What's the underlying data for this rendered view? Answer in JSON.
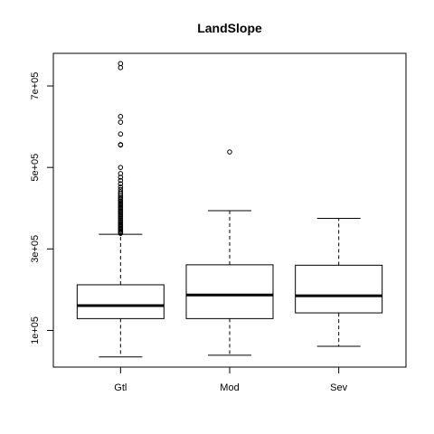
{
  "chart_data": {
    "type": "boxplot",
    "title": "LandSlope",
    "xlabel": "",
    "ylabel": "",
    "categories": [
      "Gtl",
      "Mod",
      "Sev"
    ],
    "y_ticks": [
      100000,
      300000,
      500000,
      700000
    ],
    "y_tick_labels": [
      "1e+05",
      "3e+05",
      "5e+05",
      "7e+05"
    ],
    "ylim": [
      10000,
      780000
    ],
    "grid": false,
    "boxes": [
      {
        "name": "Gtl",
        "whisker_low": 35000,
        "q1": 129000,
        "median": 161000,
        "q3": 212000,
        "whisker_high": 336000,
        "outliers": [
          338000,
          340000,
          342000,
          345000,
          348000,
          350000,
          353000,
          355000,
          358000,
          360000,
          363000,
          366000,
          369000,
          372000,
          375000,
          378000,
          381000,
          384000,
          387000,
          390000,
          393000,
          396000,
          399000,
          402000,
          405000,
          408000,
          411000,
          414000,
          417000,
          420000,
          423000,
          426000,
          430000,
          435000,
          440000,
          446000,
          452000,
          460000,
          468000,
          476000,
          485000,
          500000,
          555000,
          556000,
          582000,
          611000,
          625000,
          745000,
          755000
        ]
      },
      {
        "name": "Mod",
        "whisker_low": 39000,
        "q1": 129000,
        "median": 187000,
        "q3": 261000,
        "whisker_high": 394000,
        "outliers": [
          538000
        ]
      },
      {
        "name": "Sev",
        "whisker_low": 61000,
        "q1": 143000,
        "median": 185000,
        "q3": 260000,
        "whisker_high": 375000,
        "outliers": []
      }
    ]
  }
}
